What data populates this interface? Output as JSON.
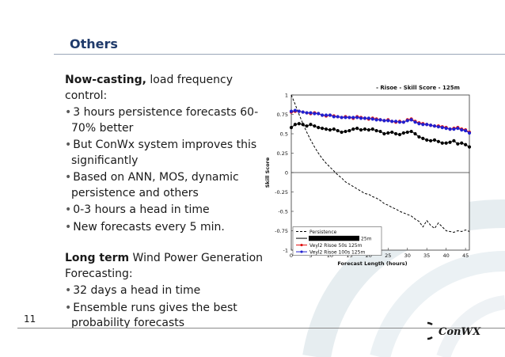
{
  "slide": {
    "title": "Others",
    "page_number": "11",
    "logo_text": "ConWX",
    "section1": {
      "lead": "Now-casting,",
      "lead_rest": " load frequency control:",
      "bullets": [
        "3 hours persistence forecasts 60-70% better",
        "But ConWx system improves this significantly",
        "Based on ANN, MOS, dynamic persistence and others",
        "0-3 hours a head in time",
        "New forecasts every 5 min."
      ]
    },
    "section2": {
      "lead": "Long term",
      "lead_rest": " Wind Power Generation Forecasting:",
      "bullets": [
        "32 days a head in time",
        "Ensemble runs gives the best probability forecasts"
      ]
    }
  },
  "chart_data": {
    "type": "line",
    "title": "- Risoe - Skill Score - 125m",
    "xlabel": "Forecast Length (hours)",
    "ylabel": "Skill Score",
    "xlim": [
      0,
      46
    ],
    "ylim": [
      -1,
      1
    ],
    "xticks": [
      "0",
      "5",
      "10",
      "15",
      "20",
      "25",
      "30",
      "35",
      "40",
      "45"
    ],
    "yticks": [
      "1",
      "0.75",
      "0.5",
      "0.25",
      "0",
      "-0.25",
      "-0.5",
      "-0.75",
      "-1"
    ],
    "legend_position": "bottom-left",
    "x": [
      0,
      1,
      2,
      3,
      4,
      5,
      6,
      7,
      8,
      9,
      10,
      11,
      12,
      13,
      14,
      15,
      16,
      17,
      18,
      19,
      20,
      21,
      22,
      23,
      24,
      25,
      26,
      27,
      28,
      29,
      30,
      31,
      32,
      33,
      34,
      35,
      36,
      37,
      38,
      39,
      40,
      41,
      42,
      43,
      44,
      45,
      46
    ],
    "series": [
      {
        "name": "Persistence",
        "color": "#000000",
        "style": "dashed",
        "values": [
          1.0,
          0.88,
          0.75,
          0.63,
          0.52,
          0.42,
          0.33,
          0.25,
          0.18,
          0.12,
          0.07,
          0.02,
          -0.03,
          -0.07,
          -0.12,
          -0.15,
          -0.18,
          -0.21,
          -0.24,
          -0.27,
          -0.28,
          -0.31,
          -0.33,
          -0.36,
          -0.4,
          -0.42,
          -0.45,
          -0.47,
          -0.5,
          -0.52,
          -0.54,
          -0.56,
          -0.6,
          -0.63,
          -0.7,
          -0.62,
          -0.68,
          -0.72,
          -0.65,
          -0.7,
          -0.75,
          -0.76,
          -0.77,
          -0.75,
          -0.76,
          -0.74,
          -0.76
        ]
      },
      {
        "name": "",
        "color": "#000000",
        "style": "solid-marker",
        "values": [
          0.58,
          0.62,
          0.63,
          0.62,
          0.6,
          0.62,
          0.6,
          0.58,
          0.57,
          0.56,
          0.55,
          0.56,
          0.54,
          0.52,
          0.53,
          0.54,
          0.56,
          0.57,
          0.55,
          0.56,
          0.55,
          0.56,
          0.54,
          0.53,
          0.5,
          0.51,
          0.52,
          0.5,
          0.49,
          0.51,
          0.52,
          0.53,
          0.5,
          0.46,
          0.44,
          0.42,
          0.41,
          0.42,
          0.4,
          0.38,
          0.38,
          0.39,
          0.41,
          0.37,
          0.38,
          0.36,
          0.33
        ]
      },
      {
        "name": "Veyl2 Risoe 50s 125m",
        "color": "#e01010",
        "style": "marker",
        "values": [
          0.78,
          0.79,
          0.79,
          0.78,
          0.77,
          0.76,
          0.77,
          0.76,
          0.74,
          0.73,
          0.74,
          0.73,
          0.72,
          0.71,
          0.72,
          0.71,
          0.7,
          0.72,
          0.71,
          0.7,
          0.69,
          0.7,
          0.69,
          0.68,
          0.67,
          0.68,
          0.66,
          0.65,
          0.66,
          0.65,
          0.68,
          0.69,
          0.66,
          0.64,
          0.63,
          0.62,
          0.61,
          0.6,
          0.6,
          0.59,
          0.58,
          0.56,
          0.57,
          0.58,
          0.56,
          0.55,
          0.52
        ]
      },
      {
        "name": "Veyl2 Risoe 100s 125m",
        "color": "#2020d0",
        "style": "marker",
        "values": [
          0.79,
          0.8,
          0.79,
          0.78,
          0.77,
          0.77,
          0.76,
          0.76,
          0.74,
          0.74,
          0.74,
          0.72,
          0.72,
          0.71,
          0.71,
          0.71,
          0.71,
          0.71,
          0.7,
          0.7,
          0.7,
          0.69,
          0.68,
          0.68,
          0.67,
          0.67,
          0.66,
          0.66,
          0.65,
          0.65,
          0.67,
          0.68,
          0.65,
          0.63,
          0.62,
          0.62,
          0.61,
          0.6,
          0.59,
          0.58,
          0.57,
          0.56,
          0.56,
          0.57,
          0.55,
          0.54,
          0.51
        ]
      }
    ],
    "legend_entries": [
      "Persistence",
      "",
      "Veyl2 Risoe 50s 125m",
      "Veyl2 Risoe 100s 125m"
    ],
    "legend_redacted_suffix": "25m"
  }
}
